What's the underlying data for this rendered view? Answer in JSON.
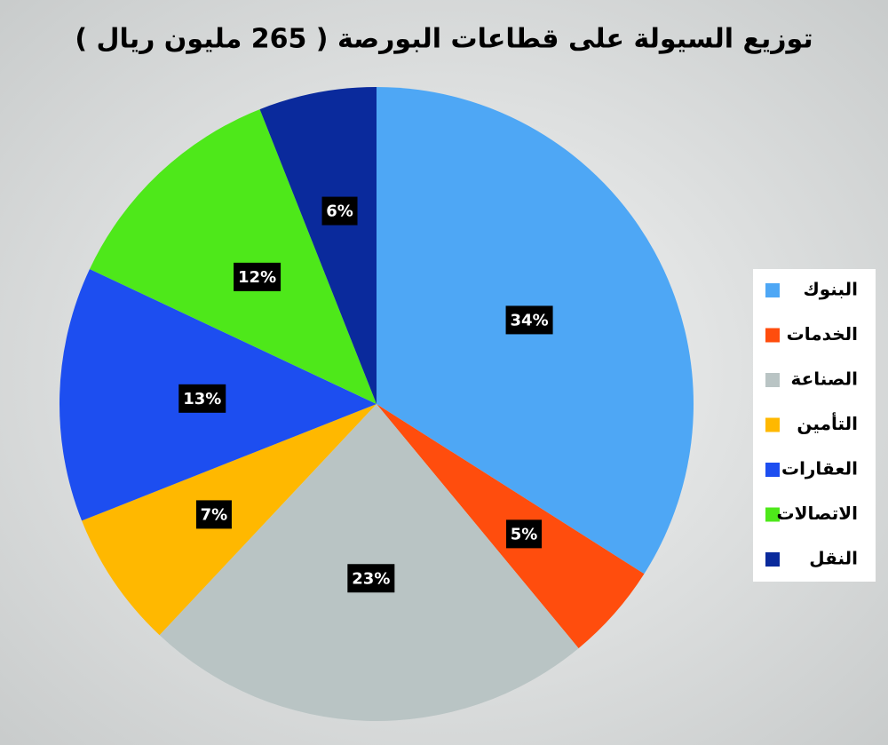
{
  "chart_data": {
    "type": "pie",
    "title": "توزيع السيولة على قطاعات البورصة ( 265 مليون ريال )",
    "categories": [
      "البنوك",
      "الخدمات",
      "الصناعة",
      "التأمين",
      "العقارات",
      "الاتصالات",
      "النقل"
    ],
    "values": [
      34,
      5,
      23,
      7,
      13,
      12,
      6
    ],
    "value_labels": [
      "34%",
      "5%",
      "23%",
      "7%",
      "13%",
      "12%",
      "6%"
    ],
    "colors": [
      "#4ea7f5",
      "#ff4d0d",
      "#b9c4c4",
      "#ffb800",
      "#1d4ef0",
      "#4ee81a",
      "#0a2a9c"
    ],
    "legend": "right"
  }
}
